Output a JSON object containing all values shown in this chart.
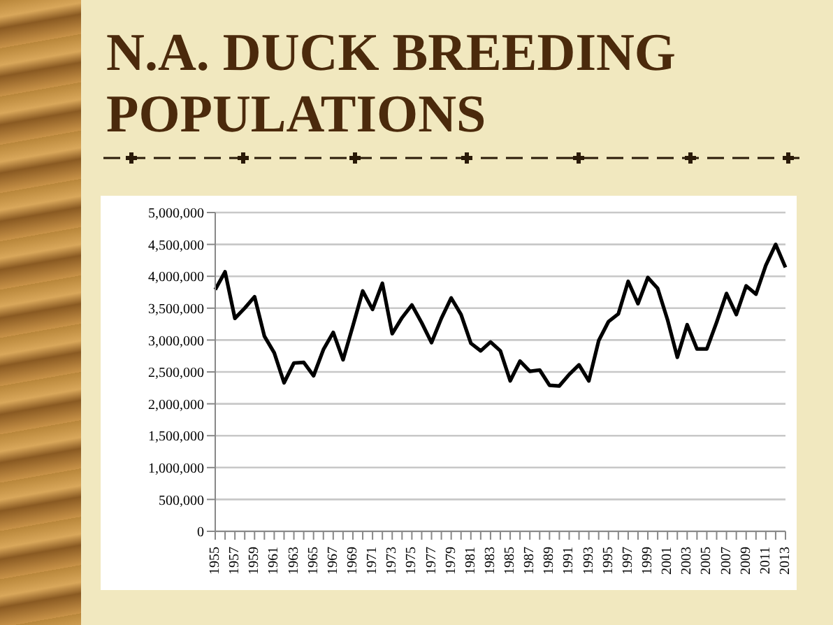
{
  "chart_data": {
    "type": "line",
    "title": "N.A. DUCK BREEDING POPULATIONS",
    "categories": [
      "1955",
      null,
      "1957",
      null,
      "1959",
      null,
      "1961",
      null,
      "1963",
      null,
      "1965",
      null,
      "1967",
      null,
      "1969",
      null,
      "1971",
      null,
      "1973",
      null,
      "1975",
      null,
      "1977",
      null,
      "1979",
      null,
      "1981",
      null,
      "1983",
      null,
      "1985",
      null,
      "1987",
      null,
      "1989",
      null,
      "1991",
      null,
      "1993",
      null,
      "1995",
      null,
      "1997",
      null,
      "1999",
      null,
      "2001",
      null,
      "2003",
      null,
      "2005",
      null,
      "2007",
      null,
      "2009",
      null,
      "2011",
      null,
      "2013"
    ],
    "series": [
      {
        "color": "#000000",
        "values": [
          3790000,
          4070000,
          3340000,
          3500000,
          3680000,
          3060000,
          2800000,
          2330000,
          2640000,
          2650000,
          2440000,
          2850000,
          3120000,
          2690000,
          3220000,
          3770000,
          3480000,
          3890000,
          3100000,
          3350000,
          3550000,
          3270000,
          2960000,
          3340000,
          3660000,
          3400000,
          2950000,
          2830000,
          2970000,
          2830000,
          2360000,
          2670000,
          2510000,
          2530000,
          2290000,
          2280000,
          2460000,
          2610000,
          2360000,
          2990000,
          3290000,
          3410000,
          3920000,
          3570000,
          3980000,
          3810000,
          3320000,
          2730000,
          3240000,
          2860000,
          2860000,
          3280000,
          3730000,
          3400000,
          3850000,
          3720000,
          4170000,
          4500000,
          4140000
        ]
      }
    ],
    "ylim": [
      0,
      5000000
    ],
    "yticks": [
      0,
      {
        "value": 500000,
        "label": "500,000"
      },
      {
        "value": 1000000,
        "label": "1,000,000"
      },
      {
        "value": 1500000,
        "label": "1,500,000"
      },
      {
        "value": 2000000,
        "label": "2,000,000"
      },
      {
        "value": 2500000,
        "label": "2,500,000"
      },
      {
        "value": 3000000,
        "label": "3,000,000"
      },
      {
        "value": 3500000,
        "label": "3,500,000"
      },
      {
        "value": 4000000,
        "label": "4,000,000"
      },
      {
        "value": 4500000,
        "label": "4,500,000"
      },
      {
        "value": 5000000,
        "label": "5,000,000"
      }
    ],
    "grid": "y",
    "marker": "none",
    "line_style": "solid"
  }
}
